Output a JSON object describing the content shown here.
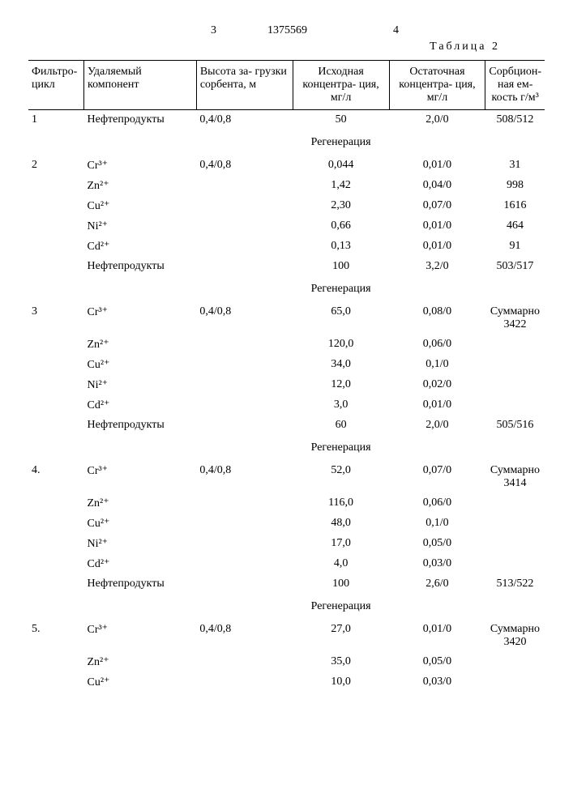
{
  "page_left": "3",
  "page_right": "4",
  "doc_number": "1375569",
  "table_label": "Таблица 2",
  "columns": {
    "c1": "Фильтро-\nцикл",
    "c2": "Удаляемый компонент",
    "c3": "Высота за-\nгрузки сорбента, м",
    "c4": "Исходная концентра-\nция, мг/л",
    "c5": "Остаточная концентра-\nция, мг/л",
    "c6": "Сорбцион-\nная ем-\nкость г/м³"
  },
  "regen_label": "Регенерация",
  "ions": {
    "Cr": "Cr³⁺",
    "Zn": "Zn²⁺",
    "Cu": "Cu²⁺",
    "Ni": "Ni²⁺",
    "Cd": "Cd²⁺"
  },
  "petro": "Нефтепродукты",
  "cycles": [
    {
      "num": "1",
      "load": "0,4/0,8",
      "rows": [
        {
          "comp": "petro",
          "c4": "50",
          "c5": "2,0/0",
          "c6": "508/512"
        }
      ]
    },
    {
      "num": "2",
      "load": "0,4/0,8",
      "rows": [
        {
          "comp": "Cr",
          "c4": "0,044",
          "c5": "0,01/0",
          "c6": "31"
        },
        {
          "comp": "Zn",
          "c4": "1,42",
          "c5": "0,04/0",
          "c6": "998"
        },
        {
          "comp": "Cu",
          "c4": "2,30",
          "c5": "0,07/0",
          "c6": "1616"
        },
        {
          "comp": "Ni",
          "c4": "0,66",
          "c5": "0,01/0",
          "c6": "464"
        },
        {
          "comp": "Cd",
          "c4": "0,13",
          "c5": "0,01/0",
          "c6": "91"
        },
        {
          "comp": "petro",
          "c4": "100",
          "c5": "3,2/0",
          "c6": "503/517"
        }
      ]
    },
    {
      "num": "3",
      "load": "0,4/0,8",
      "summary": "Суммарно 3422",
      "rows": [
        {
          "comp": "Cr",
          "c4": "65,0",
          "c5": "0,08/0"
        },
        {
          "comp": "Zn",
          "c4": "120,0",
          "c5": "0,06/0"
        },
        {
          "comp": "Cu",
          "c4": "34,0",
          "c5": "0,1/0"
        },
        {
          "comp": "Ni",
          "c4": "12,0",
          "c5": "0,02/0"
        },
        {
          "comp": "Cd",
          "c4": "3,0",
          "c5": "0,01/0"
        },
        {
          "comp": "petro",
          "c4": "60",
          "c5": "2,0/0",
          "c6": "505/516"
        }
      ]
    },
    {
      "num": "4.",
      "load": "0,4/0,8",
      "summary": "Суммарно 3414",
      "rows": [
        {
          "comp": "Cr",
          "c4": "52,0",
          "c5": "0,07/0"
        },
        {
          "comp": "Zn",
          "c4": "116,0",
          "c5": "0,06/0"
        },
        {
          "comp": "Cu",
          "c4": "48,0",
          "c5": "0,1/0"
        },
        {
          "comp": "Ni",
          "c4": "17,0",
          "c5": "0,05/0"
        },
        {
          "comp": "Cd",
          "c4": "4,0",
          "c5": "0,03/0"
        },
        {
          "comp": "petro",
          "c4": "100",
          "c5": "2,6/0",
          "c6": "513/522"
        }
      ]
    },
    {
      "num": "5.",
      "load": "0,4/0,8",
      "summary": "Суммарно 3420",
      "rows": [
        {
          "comp": "Cr",
          "c4": "27,0",
          "c5": "0,01/0"
        },
        {
          "comp": "Zn",
          "c4": "35,0",
          "c5": "0,05/0"
        },
        {
          "comp": "Cu",
          "c4": "10,0",
          "c5": "0,03/0"
        }
      ],
      "no_regen": true
    }
  ]
}
